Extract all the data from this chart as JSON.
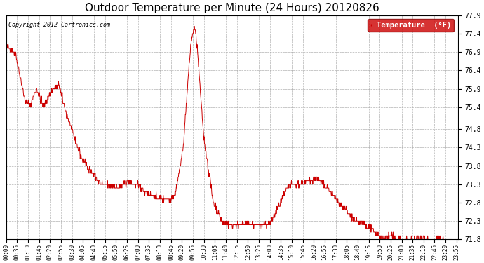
{
  "title": "Outdoor Temperature per Minute (24 Hours) 20120826",
  "copyright_text": "Copyright 2012 Cartronics.com",
  "legend_label": "Temperature  (°F)",
  "line_color": "#cc0000",
  "legend_bg": "#cc0000",
  "legend_text_color": "#ffffff",
  "background_color": "#ffffff",
  "plot_bg": "#ffffff",
  "ylim": [
    71.8,
    77.9
  ],
  "yticks": [
    71.8,
    72.3,
    72.8,
    73.3,
    73.8,
    74.3,
    74.8,
    75.4,
    75.9,
    76.4,
    76.9,
    77.4,
    77.9
  ],
  "title_fontsize": 11,
  "grid_color": "#aaaaaa",
  "grid_style": "--",
  "num_minutes": 1440,
  "xtick_step": 35
}
